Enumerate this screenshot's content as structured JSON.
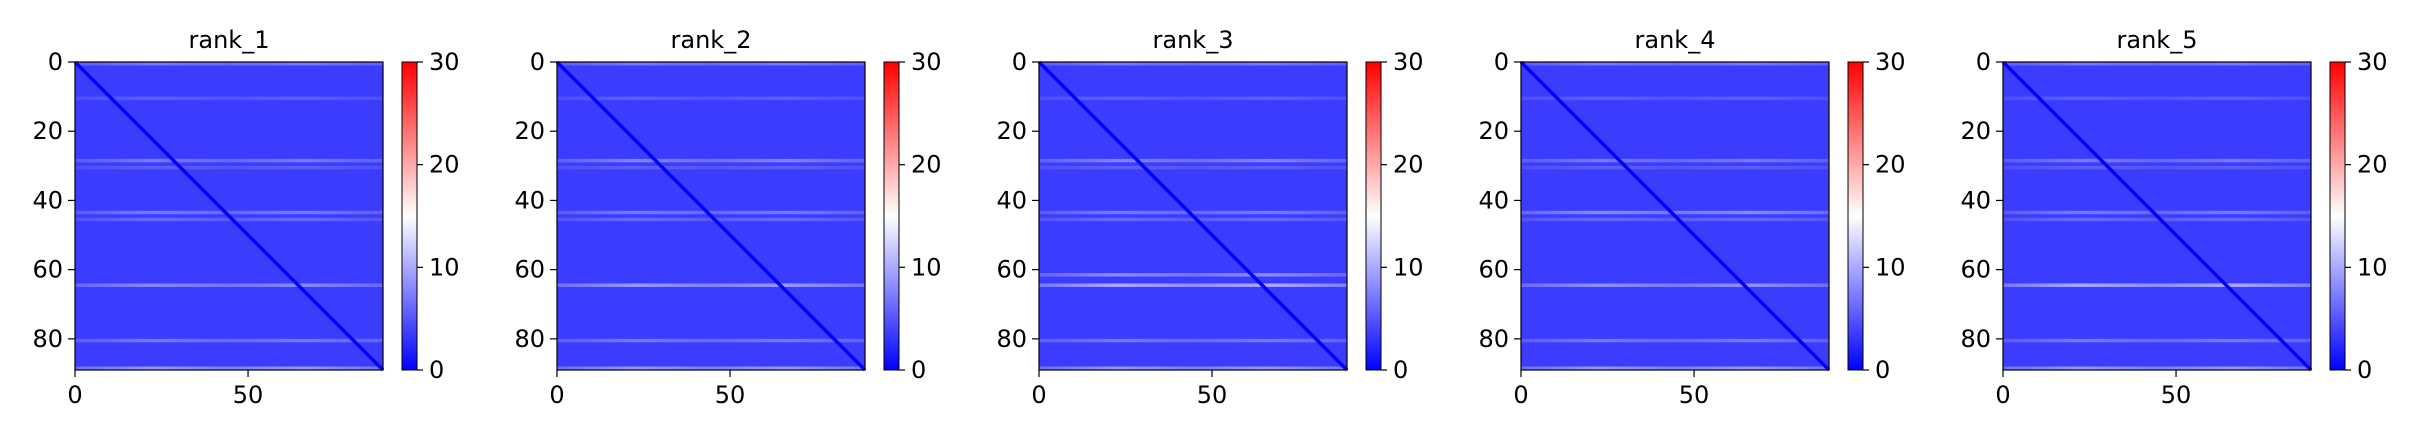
{
  "chart_data": [
    {
      "type": "heatmap",
      "title": "rank_1",
      "x_ticks": [
        0,
        50
      ],
      "y_ticks": [
        0,
        20,
        40,
        60,
        80
      ],
      "xlim": [
        0,
        89
      ],
      "ylim": [
        89,
        0
      ],
      "colorbar": {
        "colormap": "bwr",
        "range": [
          0,
          30
        ],
        "ticks": [
          0,
          10,
          20,
          30
        ]
      },
      "diagonal_value": 0,
      "background_value": 3.5,
      "bright_rows": [
        {
          "row": 0,
          "value": 7
        },
        {
          "row": 10,
          "value": 5.5
        },
        {
          "row": 28,
          "value": 7
        },
        {
          "row": 30,
          "value": 5.5
        },
        {
          "row": 43,
          "value": 7
        },
        {
          "row": 45,
          "value": 6
        },
        {
          "row": 64,
          "value": 8
        },
        {
          "row": 80,
          "value": 7
        },
        {
          "row": 88,
          "value": 9
        }
      ]
    },
    {
      "type": "heatmap",
      "title": "rank_2",
      "x_ticks": [
        0,
        50
      ],
      "y_ticks": [
        0,
        20,
        40,
        60,
        80
      ],
      "xlim": [
        0,
        89
      ],
      "ylim": [
        89,
        0
      ],
      "colorbar": {
        "colormap": "bwr",
        "range": [
          0,
          30
        ],
        "ticks": [
          0,
          10,
          20,
          30
        ]
      },
      "diagonal_value": 0,
      "background_value": 3.5,
      "bright_rows": [
        {
          "row": 0,
          "value": 7
        },
        {
          "row": 10,
          "value": 5.5
        },
        {
          "row": 28,
          "value": 7.5
        },
        {
          "row": 30,
          "value": 5.5
        },
        {
          "row": 43,
          "value": 7
        },
        {
          "row": 45,
          "value": 6
        },
        {
          "row": 64,
          "value": 9
        },
        {
          "row": 80,
          "value": 7
        },
        {
          "row": 88,
          "value": 9
        }
      ]
    },
    {
      "type": "heatmap",
      "title": "rank_3",
      "x_ticks": [
        0,
        50
      ],
      "y_ticks": [
        0,
        20,
        40,
        60,
        80
      ],
      "xlim": [
        0,
        89
      ],
      "ylim": [
        89,
        0
      ],
      "colorbar": {
        "colormap": "bwr",
        "range": [
          0,
          30
        ],
        "ticks": [
          0,
          10,
          20,
          30
        ]
      },
      "diagonal_value": 0,
      "background_value": 3.5,
      "bright_rows": [
        {
          "row": 0,
          "value": 7
        },
        {
          "row": 10,
          "value": 5.5
        },
        {
          "row": 28,
          "value": 7.5
        },
        {
          "row": 30,
          "value": 5.5
        },
        {
          "row": 43,
          "value": 7
        },
        {
          "row": 45,
          "value": 6
        },
        {
          "row": 61,
          "value": 8
        },
        {
          "row": 64,
          "value": 10
        },
        {
          "row": 80,
          "value": 7
        },
        {
          "row": 88,
          "value": 9
        }
      ]
    },
    {
      "type": "heatmap",
      "title": "rank_4",
      "x_ticks": [
        0,
        50
      ],
      "y_ticks": [
        0,
        20,
        40,
        60,
        80
      ],
      "xlim": [
        0,
        89
      ],
      "ylim": [
        89,
        0
      ],
      "colorbar": {
        "colormap": "bwr",
        "range": [
          0,
          30
        ],
        "ticks": [
          0,
          10,
          20,
          30
        ]
      },
      "diagonal_value": 0,
      "background_value": 3.5,
      "bright_rows": [
        {
          "row": 0,
          "value": 7
        },
        {
          "row": 10,
          "value": 5.5
        },
        {
          "row": 28,
          "value": 7
        },
        {
          "row": 30,
          "value": 5.5
        },
        {
          "row": 43,
          "value": 8
        },
        {
          "row": 45,
          "value": 6
        },
        {
          "row": 64,
          "value": 8.5
        },
        {
          "row": 80,
          "value": 7
        },
        {
          "row": 88,
          "value": 9
        }
      ]
    },
    {
      "type": "heatmap",
      "title": "rank_5",
      "x_ticks": [
        0,
        50
      ],
      "y_ticks": [
        0,
        20,
        40,
        60,
        80
      ],
      "xlim": [
        0,
        89
      ],
      "ylim": [
        89,
        0
      ],
      "colorbar": {
        "colormap": "bwr",
        "range": [
          0,
          30
        ],
        "ticks": [
          0,
          10,
          20,
          30
        ]
      },
      "diagonal_value": 0,
      "background_value": 3.5,
      "bright_rows": [
        {
          "row": 0,
          "value": 7
        },
        {
          "row": 10,
          "value": 5.5
        },
        {
          "row": 28,
          "value": 7
        },
        {
          "row": 30,
          "value": 5.5
        },
        {
          "row": 43,
          "value": 7
        },
        {
          "row": 45,
          "value": 6
        },
        {
          "row": 64,
          "value": 10
        },
        {
          "row": 80,
          "value": 7
        },
        {
          "row": 88,
          "value": 9
        }
      ]
    }
  ]
}
